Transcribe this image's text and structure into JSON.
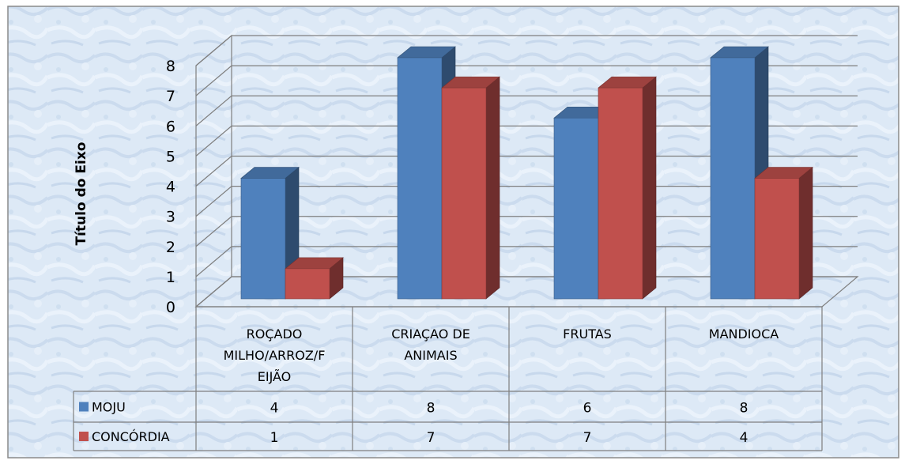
{
  "chart_data": {
    "type": "bar",
    "variant": "3d-clustered-column-with-data-table",
    "title": "",
    "xlabel": "",
    "ylabel": "Título do Eixo",
    "ylim": [
      0,
      8
    ],
    "yticks": [
      0,
      1,
      2,
      3,
      4,
      5,
      6,
      7,
      8
    ],
    "grid": true,
    "legend": "in-data-table",
    "categories": [
      [
        "ROÇADO",
        "MILHO/ARROZ/F",
        "EIJÃO"
      ],
      [
        "CRIAÇAO DE",
        "ANIMAIS"
      ],
      [
        "FRUTAS"
      ],
      [
        "MANDIOCA"
      ]
    ],
    "series": [
      {
        "name": "MOJU",
        "color": "#4F81BD",
        "values": [
          4,
          8,
          6,
          8
        ]
      },
      {
        "name": "CONCÓRDIA",
        "color": "#C0504D",
        "values": [
          1,
          7,
          7,
          4
        ]
      }
    ]
  }
}
